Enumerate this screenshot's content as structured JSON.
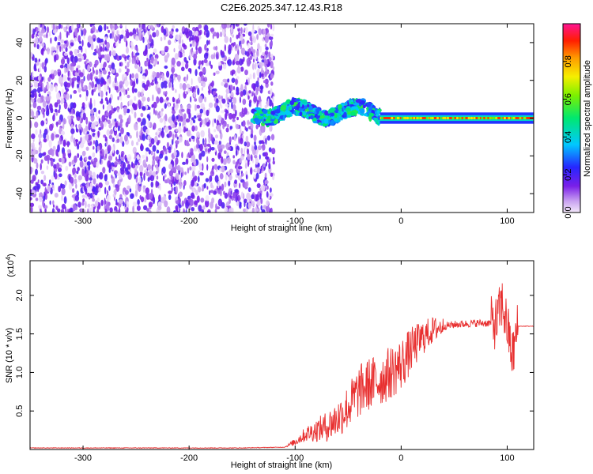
{
  "title": "C2E6.2025.347.12.43.R18",
  "chart_data": [
    {
      "type": "heatmap",
      "xlabel": "Height of straight line (km)",
      "ylabel": "Frequency (Hz)",
      "xlim": [
        -350,
        125
      ],
      "ylim": [
        -50,
        50
      ],
      "xticks": [
        -300,
        -200,
        -100,
        0,
        100
      ],
      "yticks": [
        -40,
        -20,
        0,
        20,
        40
      ],
      "colorbar": {
        "label": "Normalized spectral amplitude",
        "range": [
          0,
          1
        ],
        "ticks": [
          0.0,
          0.2,
          0.4,
          0.6,
          0.8
        ],
        "tick_labels": [
          "0.0",
          "0.2",
          "0.4",
          "0.6",
          "0.8"
        ]
      },
      "regions": [
        {
          "x_range": [
            -350,
            -120
          ],
          "description": "broadband noise",
          "amplitude_range": [
            0.0,
            0.2
          ]
        },
        {
          "x_range": [
            -140,
            -20
          ],
          "center_frequency": 3,
          "bandwidth": 8,
          "amplitude_range": [
            0.2,
            0.55
          ]
        },
        {
          "x_range": [
            -20,
            125
          ],
          "center_frequency": 0,
          "bandwidth": 3,
          "amplitude_range": [
            0.8,
            1.0
          ]
        }
      ]
    },
    {
      "type": "line",
      "xlabel": "Height of straight line (km)",
      "ylabel": "SNR (10 * v/v)",
      "y_multiplier": "(x10",
      "y_multiplier_exp": "4",
      "y_multiplier_close": ")",
      "xlim": [
        -350,
        125
      ],
      "ylim": [
        0,
        2.45
      ],
      "xticks": [
        -300,
        -200,
        -100,
        0,
        100
      ],
      "yticks": [
        0.5,
        1.0,
        1.5,
        2.0
      ],
      "series": [
        {
          "name": "SNR",
          "color": "#e83030",
          "x": [
            -350,
            -300,
            -250,
            -200,
            -150,
            -110,
            -100,
            -90,
            -80,
            -70,
            -60,
            -50,
            -40,
            -30,
            -20,
            -10,
            0,
            10,
            20,
            30,
            40,
            50,
            60,
            70,
            80,
            90,
            95,
            100,
            105,
            110,
            125
          ],
          "y": [
            0.02,
            0.02,
            0.02,
            0.02,
            0.02,
            0.03,
            0.1,
            0.2,
            0.25,
            0.3,
            0.4,
            0.55,
            0.75,
            0.85,
            0.9,
            1.0,
            1.1,
            1.3,
            1.45,
            1.55,
            1.6,
            1.62,
            1.63,
            1.64,
            1.64,
            1.64,
            1.9,
            1.6,
            1.2,
            1.6,
            1.6
          ]
        }
      ]
    }
  ]
}
